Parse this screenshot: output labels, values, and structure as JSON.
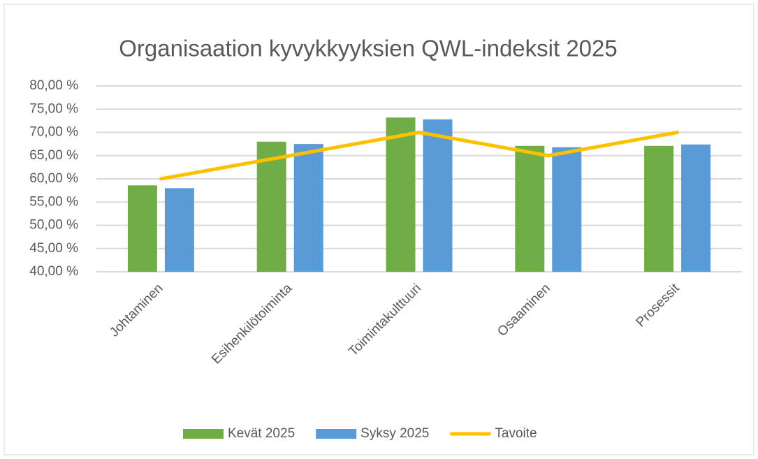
{
  "chart_data": {
    "type": "bar",
    "title": "Organisaation kyvykkyyksien QWL-indeksit 2025",
    "categories": [
      "Johtaminen",
      "Esihenkilötoiminta",
      "Toimintakulttuuri",
      "Osaaminen",
      "Prosessit"
    ],
    "series": [
      {
        "name": "Kevät 2025",
        "color": "#70ad47",
        "values": [
          58.6,
          68.0,
          73.2,
          67.1,
          67.1
        ]
      },
      {
        "name": "Syksy 2025",
        "color": "#5b9bd5",
        "values": [
          58.0,
          67.5,
          72.8,
          66.8,
          67.4
        ]
      },
      {
        "name": "Tavoite",
        "color": "#ffc000",
        "type": "line",
        "values": [
          60,
          65,
          70,
          65,
          70
        ]
      }
    ],
    "ylim": [
      40,
      80
    ],
    "yticks": [
      {
        "value": 40,
        "label": "40,00 %"
      },
      {
        "value": 45,
        "label": "45,00 %"
      },
      {
        "value": 50,
        "label": "50,00 %"
      },
      {
        "value": 55,
        "label": "55,00 %"
      },
      {
        "value": 60,
        "label": "60,00 %"
      },
      {
        "value": 65,
        "label": "65,00 %"
      },
      {
        "value": 70,
        "label": "70,00 %"
      },
      {
        "value": 75,
        "label": "75,00 %"
      },
      {
        "value": 80,
        "label": "80,00 %"
      }
    ],
    "grid": true,
    "legend": "bottom"
  }
}
